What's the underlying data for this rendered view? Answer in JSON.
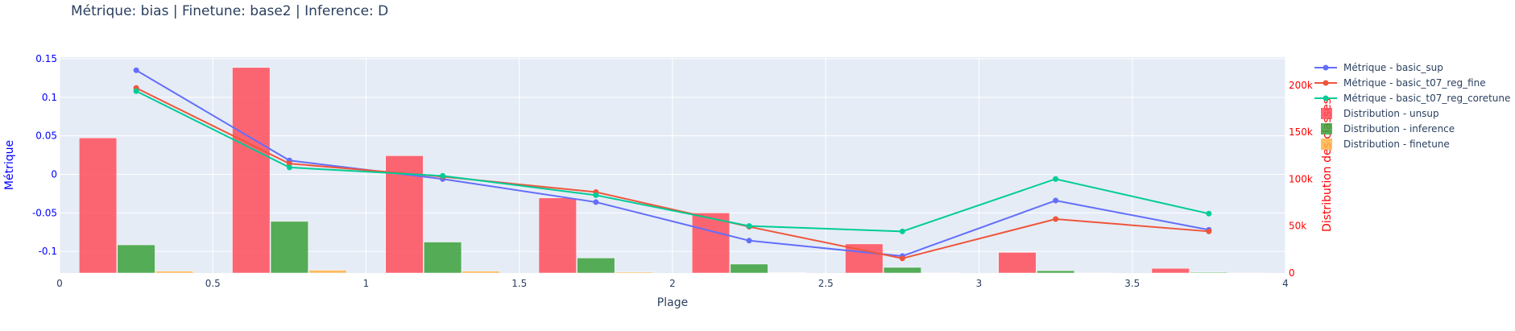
{
  "chart_data": {
    "type": "bar",
    "title": "Métrique: bias | Finetune: base2 | Inference: D",
    "xlabel": "Plage",
    "ylabel_left": "Métrique",
    "ylabel_right": "Distribution des classes",
    "xlim": [
      0,
      4
    ],
    "ylim_left": [
      -0.128,
      0.152
    ],
    "ylim_right": [
      0,
      230000
    ],
    "x_ticks": [
      "0",
      "0.5",
      "1",
      "1.5",
      "2",
      "2.5",
      "3",
      "3.5",
      "4"
    ],
    "y_left_ticks": [
      "-0.1",
      "-0.05",
      "0",
      "0.05",
      "0.1",
      "0.15"
    ],
    "y_right_ticks": [
      "0",
      "50k",
      "100k",
      "150k",
      "200k"
    ],
    "grid": true,
    "legend_position": "right",
    "colors": {
      "plot_bg": "#e5ecf6",
      "basic_sup": "#636efa",
      "basic_t07_reg_fine": "#ef553b",
      "basic_t07_reg_coretune": "#00cc96",
      "unsup": "#ff4d5a",
      "inference": "#3ba13b",
      "finetune": "#ffb347",
      "left_axis": "#0000ff",
      "right_axis": "#ff0000",
      "text": "#2a3f5f"
    },
    "lines": [
      {
        "name": "Métrique - basic_sup",
        "color_key": "basic_sup",
        "x": [
          0.25,
          0.75,
          1.25,
          1.75,
          2.25,
          2.75,
          3.25,
          3.75
        ],
        "y": [
          0.135,
          0.018,
          -0.006,
          -0.036,
          -0.086,
          -0.106,
          -0.034,
          -0.072
        ]
      },
      {
        "name": "Métrique - basic_t07_reg_fine",
        "color_key": "basic_t07_reg_fine",
        "x": [
          0.25,
          0.75,
          1.25,
          1.75,
          2.25,
          2.75,
          3.25,
          3.75
        ],
        "y": [
          0.112,
          0.014,
          -0.003,
          -0.023,
          -0.068,
          -0.109,
          -0.058,
          -0.074
        ]
      },
      {
        "name": "Métrique - basic_t07_reg_coretune",
        "color_key": "basic_t07_reg_coretune",
        "x": [
          0.25,
          0.75,
          1.25,
          1.75,
          2.25,
          2.75,
          3.25,
          3.75
        ],
        "y": [
          0.108,
          0.009,
          -0.002,
          -0.027,
          -0.067,
          -0.074,
          -0.006,
          -0.051
        ]
      }
    ],
    "bars": [
      {
        "name": "Distribution - unsup",
        "color_key": "unsup",
        "x": [
          0.125,
          0.625,
          1.125,
          1.625,
          2.125,
          2.625,
          3.125,
          3.625
        ],
        "values": [
          144000,
          219000,
          125000,
          80000,
          64000,
          31000,
          22000,
          5000
        ]
      },
      {
        "name": "Distribution - inference",
        "color_key": "inference",
        "x": [
          0.25,
          0.75,
          1.25,
          1.75,
          2.25,
          2.75,
          3.25,
          3.75
        ],
        "values": [
          30000,
          55000,
          33000,
          16000,
          9500,
          6000,
          2500,
          800
        ]
      },
      {
        "name": "Distribution - finetune",
        "color_key": "finetune",
        "x": [
          0.375,
          0.875,
          1.375,
          1.875,
          2.375,
          2.875,
          3.375,
          3.875
        ],
        "values": [
          2000,
          3000,
          2000,
          1000,
          400,
          200,
          100,
          50
        ]
      }
    ]
  }
}
